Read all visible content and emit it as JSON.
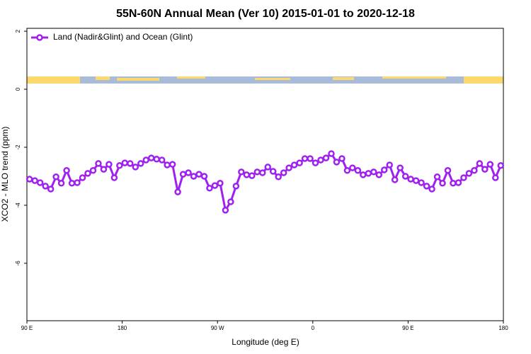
{
  "chart_data": {
    "type": "line",
    "title": "55N-60N Annual Mean (Ver 10)   2015-01-01 to 2020-12-18",
    "x_label": "Longitude (deg E)",
    "y_label": "XCO2 - MLO trend (ppm)",
    "x": [
      92.5,
      97.5,
      102.5,
      107.5,
      112.5,
      117.5,
      122.5,
      127.5,
      132.5,
      137.5,
      142.5,
      147.5,
      152.5,
      157.5,
      162.5,
      167.5,
      172.5,
      177.5,
      182.5,
      187.5,
      192.5,
      197.5,
      202.5,
      207.5,
      212.5,
      217.5,
      222.5,
      227.5,
      232.5,
      237.5,
      242.5,
      247.5,
      252.5,
      257.5,
      262.5,
      267.5,
      272.5,
      277.5,
      282.5,
      287.5,
      292.5,
      297.5,
      302.5,
      307.5,
      312.5,
      317.5,
      322.5,
      327.5,
      332.5,
      337.5,
      342.5,
      347.5,
      352.5,
      357.5,
      362.5,
      367.5,
      372.5,
      377.5,
      382.5,
      387.5,
      392.5,
      397.5,
      402.5,
      407.5,
      412.5,
      417.5,
      422.5,
      427.5,
      432.5,
      437.5,
      442.5,
      447.5,
      452.5,
      457.5,
      462.5,
      467.5,
      472.5,
      477.5,
      482.5,
      487.5,
      492.5,
      497.5,
      502.5,
      507.5,
      512.5,
      517.5,
      522.5,
      527.5,
      532.5,
      537.5
    ],
    "series": [
      {
        "name": "Land (Nadir&Glint) and Ocean (Glint)",
        "color": "#a020f0",
        "values": [
          -3.1,
          -3.15,
          -3.22,
          -3.34,
          -3.44,
          -3.02,
          -3.24,
          -2.8,
          -3.24,
          -3.22,
          -3.05,
          -2.9,
          -2.8,
          -2.56,
          -2.76,
          -2.59,
          -3.05,
          -2.63,
          -2.54,
          -2.56,
          -2.68,
          -2.56,
          -2.44,
          -2.37,
          -2.41,
          -2.44,
          -2.61,
          -2.59,
          -3.54,
          -2.93,
          -2.88,
          -3.0,
          -2.93,
          -3.0,
          -3.41,
          -3.32,
          -3.24,
          -4.17,
          -3.88,
          -3.34,
          -2.85,
          -2.95,
          -2.98,
          -2.85,
          -2.88,
          -2.68,
          -2.83,
          -3.02,
          -2.88,
          -2.71,
          -2.61,
          -2.54,
          -2.39,
          -2.39,
          -2.54,
          -2.44,
          -2.37,
          -2.22,
          -2.51,
          -2.39,
          -2.8,
          -2.71,
          -2.8,
          -2.95,
          -2.9,
          -2.85,
          -2.95,
          -2.78,
          -2.61,
          -3.12,
          -2.71,
          -3.0,
          -3.1,
          -3.15,
          -3.22,
          -3.34,
          -3.44,
          -3.02,
          -3.24,
          -2.8,
          -3.24,
          -3.22,
          -3.05,
          -2.9,
          -2.8,
          -2.56,
          -2.76,
          -2.59,
          -3.05,
          -2.63
        ]
      }
    ],
    "xlim": [
      90,
      540
    ],
    "xticks": [
      {
        "value": 90,
        "label": "90 E"
      },
      180,
      {
        "value": 270,
        "label": "90 W"
      },
      {
        "value": 360,
        "label": "0"
      },
      {
        "value": 450,
        "label": "90 E"
      },
      {
        "value": 540,
        "label": "180"
      }
    ],
    "ylim": [
      -7.98,
      2.1
    ],
    "yticks": [
      2,
      0,
      -2,
      -4,
      -6
    ],
    "legend": "top-left"
  }
}
